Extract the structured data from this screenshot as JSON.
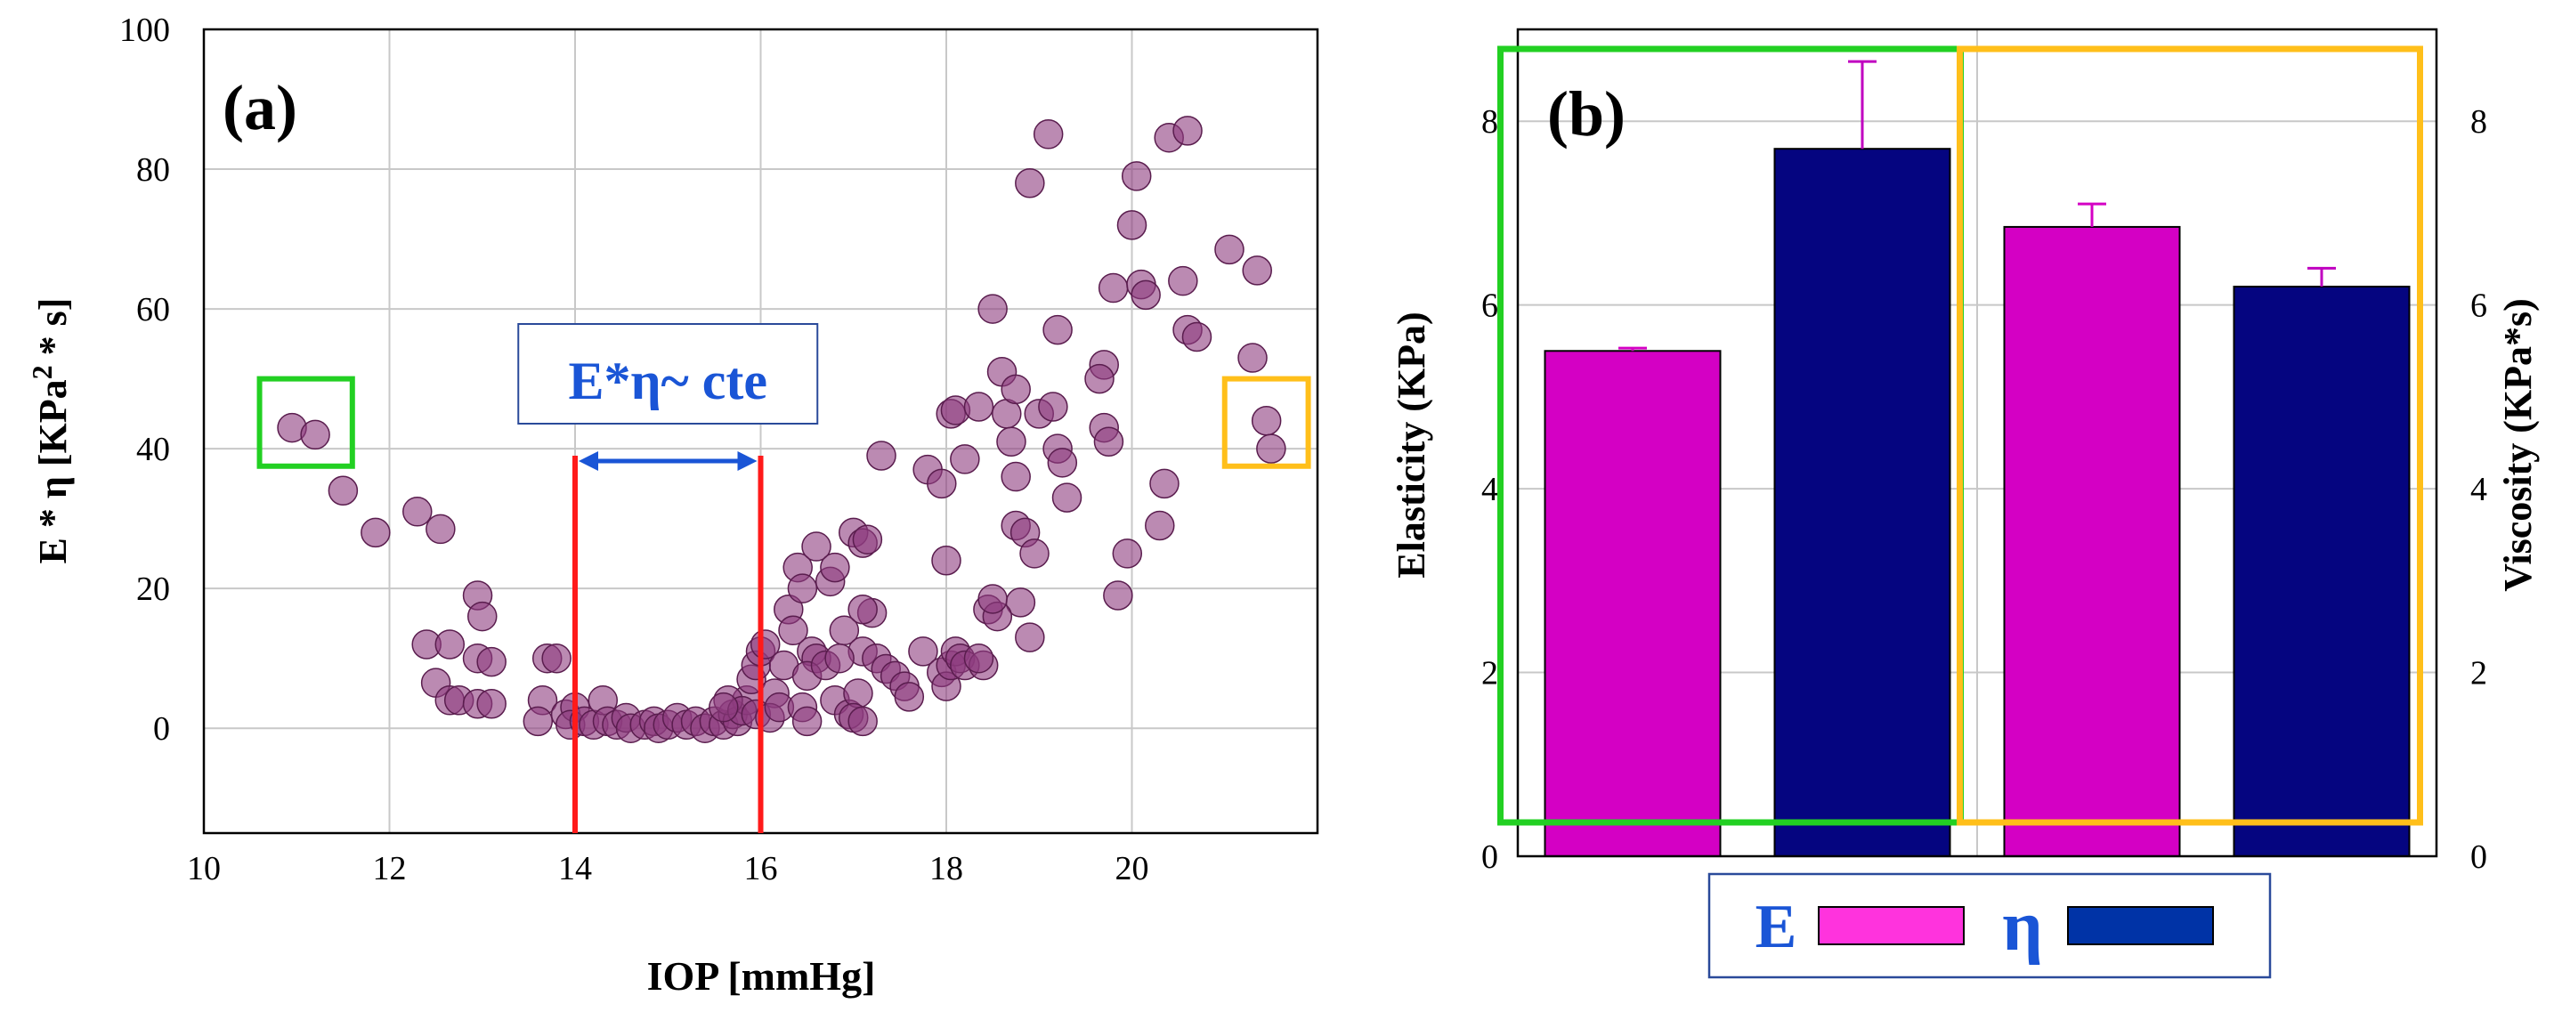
{
  "colors": {
    "scatter_fill": "#8e3c7e",
    "scatter_stroke": "#5a1d4e",
    "green_box": "#22d022",
    "orange_box": "#ffbf1a",
    "blue_text": "#1a55d6",
    "red_line": "#ff1a1a",
    "bar_e": "#d400c4",
    "bar_eta": "#050580",
    "legend_e": "#ff33dd",
    "legend_eta": "#0033a6",
    "grid": "#c8c8c8"
  },
  "chart_data": [
    {
      "type": "scatter",
      "panel_label": "(a)",
      "xlabel": "IOP [mmHg]",
      "ylabel_main": "E * η  [KPa",
      "ylabel_sup": "2",
      "ylabel_tail": " * s]",
      "xlim": [
        10,
        22
      ],
      "ylim": [
        -15,
        100
      ],
      "x_ticks": [
        10,
        12,
        14,
        16,
        18,
        20
      ],
      "y_ticks": [
        0,
        20,
        40,
        60,
        80,
        100
      ],
      "grid": true,
      "annotation": {
        "text": "E*η~ cte",
        "x_from": 14,
        "x_to": 16,
        "y": 39
      },
      "red_lines_x": [
        14,
        16
      ],
      "green_box": {
        "x": [
          10.6,
          11.6
        ],
        "y": [
          37.5,
          50
        ]
      },
      "orange_box": {
        "x": [
          21.0,
          21.9
        ],
        "y": [
          37.5,
          50
        ]
      },
      "points": [
        [
          10.95,
          43
        ],
        [
          11.2,
          42
        ],
        [
          11.5,
          34
        ],
        [
          11.85,
          28
        ],
        [
          12.3,
          31
        ],
        [
          12.55,
          28.5
        ],
        [
          12.4,
          12
        ],
        [
          12.65,
          12
        ],
        [
          12.5,
          6.5
        ],
        [
          12.65,
          4
        ],
        [
          12.75,
          4
        ],
        [
          12.95,
          3.5
        ],
        [
          13.1,
          3.5
        ],
        [
          12.95,
          19
        ],
        [
          13.0,
          16
        ],
        [
          12.95,
          10
        ],
        [
          13.1,
          9.5
        ],
        [
          13.7,
          10
        ],
        [
          13.8,
          10
        ],
        [
          13.65,
          4
        ],
        [
          13.6,
          1
        ],
        [
          13.9,
          2
        ],
        [
          14.0,
          3
        ],
        [
          13.95,
          0.5
        ],
        [
          14.1,
          1
        ],
        [
          14.2,
          0.5
        ],
        [
          14.3,
          4
        ],
        [
          14.35,
          1
        ],
        [
          14.45,
          0.5
        ],
        [
          14.55,
          1.5
        ],
        [
          14.6,
          0
        ],
        [
          14.75,
          0.5
        ],
        [
          14.85,
          1
        ],
        [
          14.9,
          0
        ],
        [
          15.0,
          0.5
        ],
        [
          15.1,
          1.5
        ],
        [
          15.2,
          0.5
        ],
        [
          15.3,
          1
        ],
        [
          15.4,
          0
        ],
        [
          15.5,
          1
        ],
        [
          15.6,
          0.5
        ],
        [
          15.7,
          2
        ],
        [
          15.75,
          1
        ],
        [
          15.85,
          4
        ],
        [
          15.9,
          7
        ],
        [
          15.95,
          9
        ],
        [
          16.0,
          11
        ],
        [
          16.05,
          12
        ],
        [
          16.15,
          5
        ],
        [
          15.65,
          4
        ],
        [
          15.8,
          2.5
        ],
        [
          15.95,
          2
        ],
        [
          16.1,
          1.5
        ],
        [
          15.6,
          3
        ],
        [
          16.2,
          3
        ],
        [
          16.25,
          9
        ],
        [
          16.3,
          17
        ],
        [
          16.4,
          23
        ],
        [
          16.45,
          20
        ],
        [
          16.55,
          11
        ],
        [
          16.6,
          10
        ],
        [
          16.35,
          14
        ],
        [
          16.5,
          7.5
        ],
        [
          16.6,
          26
        ],
        [
          16.75,
          21
        ],
        [
          16.8,
          23
        ],
        [
          16.7,
          9
        ],
        [
          16.45,
          3
        ],
        [
          16.5,
          1
        ],
        [
          16.8,
          4
        ],
        [
          16.95,
          2
        ],
        [
          16.9,
          14
        ],
        [
          17.0,
          28
        ],
        [
          17.1,
          26.5
        ],
        [
          17.15,
          27
        ],
        [
          17.1,
          11
        ],
        [
          17.25,
          10
        ],
        [
          17.2,
          16.5
        ],
        [
          17.35,
          8.5
        ],
        [
          17.45,
          7.5
        ],
        [
          17.55,
          6
        ],
        [
          17.6,
          4.5
        ],
        [
          17.3,
          39
        ],
        [
          17.1,
          17
        ],
        [
          16.85,
          10
        ],
        [
          17.05,
          5
        ],
        [
          17.0,
          1.5
        ],
        [
          17.1,
          1
        ],
        [
          17.75,
          11
        ],
        [
          17.8,
          37
        ],
        [
          17.95,
          8
        ],
        [
          18.0,
          6
        ],
        [
          18.05,
          9
        ],
        [
          18.1,
          11
        ],
        [
          18.15,
          10
        ],
        [
          18.2,
          9
        ],
        [
          18.4,
          9
        ],
        [
          18.35,
          10
        ],
        [
          17.95,
          35
        ],
        [
          18.0,
          24
        ],
        [
          18.05,
          45
        ],
        [
          18.1,
          45.5
        ],
        [
          18.2,
          38.5
        ],
        [
          18.35,
          46
        ],
        [
          18.45,
          17
        ],
        [
          18.5,
          60
        ],
        [
          18.6,
          51
        ],
        [
          18.65,
          45
        ],
        [
          18.75,
          48.5
        ],
        [
          18.7,
          41
        ],
        [
          18.75,
          36
        ],
        [
          18.75,
          29
        ],
        [
          18.85,
          28
        ],
        [
          18.8,
          18
        ],
        [
          18.9,
          13
        ],
        [
          18.55,
          16
        ],
        [
          18.5,
          18.5
        ],
        [
          18.95,
          25
        ],
        [
          19.0,
          45
        ],
        [
          19.15,
          46
        ],
        [
          19.2,
          40
        ],
        [
          19.25,
          38
        ],
        [
          19.3,
          33
        ],
        [
          19.2,
          57
        ],
        [
          19.1,
          85
        ],
        [
          18.9,
          78
        ],
        [
          19.7,
          52
        ],
        [
          19.65,
          50
        ],
        [
          19.7,
          43
        ],
        [
          19.75,
          41
        ],
        [
          19.8,
          63
        ],
        [
          19.85,
          19
        ],
        [
          19.95,
          25
        ],
        [
          20.0,
          72
        ],
        [
          20.05,
          79
        ],
        [
          20.1,
          63.5
        ],
        [
          20.15,
          62
        ],
        [
          20.3,
          29
        ],
        [
          20.35,
          35
        ],
        [
          20.4,
          84.5
        ],
        [
          20.6,
          85.5
        ],
        [
          20.55,
          64
        ],
        [
          20.6,
          57
        ],
        [
          20.7,
          56
        ],
        [
          21.05,
          68.5
        ],
        [
          21.3,
          53
        ],
        [
          21.35,
          65.5
        ],
        [
          21.45,
          44
        ],
        [
          21.5,
          40
        ]
      ]
    },
    {
      "type": "bar",
      "panel_label": "(b)",
      "ylabel_left": "Elasticity (KPa)",
      "ylabel_right": "Viscosity (KPa*s)",
      "ylim": [
        0,
        9
      ],
      "y_ticks": [
        0,
        2,
        4,
        6,
        8
      ],
      "right_y_ticks": [
        0,
        2,
        4,
        6,
        8
      ],
      "grid": true,
      "bars": [
        {
          "series": "E",
          "value": 5.5,
          "error": 0.03
        },
        {
          "series": "η",
          "value": 7.7,
          "error": 0.95
        },
        {
          "series": "E",
          "value": 6.85,
          "error": 0.25
        },
        {
          "series": "η",
          "value": 6.2,
          "error": 0.2
        }
      ],
      "green_group": [
        0,
        1
      ],
      "orange_group": [
        2,
        3
      ],
      "legend": [
        {
          "label": "E",
          "series": "E"
        },
        {
          "label": "η",
          "series": "η"
        }
      ]
    }
  ]
}
